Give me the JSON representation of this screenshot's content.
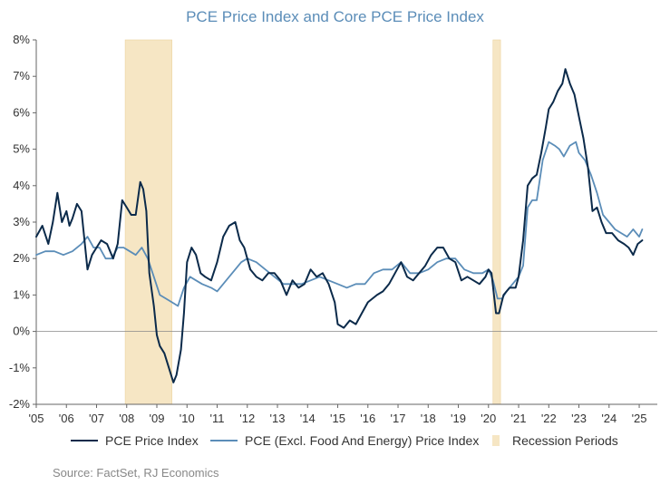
{
  "title": "PCE Price Index and Core PCE Price Index",
  "source": "Source: FactSet, RJ Economics",
  "colors": {
    "pce": "#0b2a4a",
    "core": "#5b8db8",
    "recession": "#f6e6c4",
    "title": "#5b8db8",
    "zero_line": "#888888"
  },
  "chart_data": {
    "type": "line",
    "x_unit": "year",
    "xlim": [
      2005.0,
      2025.6
    ],
    "ylim": [
      -2,
      8
    ],
    "y_ticks": [
      -2,
      -1,
      0,
      1,
      2,
      3,
      4,
      5,
      6,
      7,
      8
    ],
    "y_tick_labels": [
      "-2%",
      "-1%",
      "0%",
      "1%",
      "2%",
      "3%",
      "4%",
      "5%",
      "6%",
      "7%",
      "8%"
    ],
    "x_ticks": [
      2005,
      2006,
      2007,
      2008,
      2009,
      2010,
      2011,
      2012,
      2013,
      2014,
      2015,
      2016,
      2017,
      2018,
      2019,
      2020,
      2021,
      2022,
      2023,
      2024,
      2025
    ],
    "x_tick_labels": [
      "'05",
      "'06",
      "'07",
      "'08",
      "'09",
      "'10",
      "'11",
      "'12",
      "'13",
      "'14",
      "'15",
      "'16",
      "'17",
      "'18",
      "'19",
      "'20",
      "'21",
      "'22",
      "'23",
      "'24",
      "'25"
    ],
    "recessions": [
      {
        "start": 2007.95,
        "end": 2009.5
      },
      {
        "start": 2020.15,
        "end": 2020.4
      }
    ],
    "legend": [
      "PCE Price Index",
      "PCE (Excl. Food And Energy) Price Index",
      "Recession Periods"
    ],
    "series": [
      {
        "name": "PCE Price Index",
        "x": [
          2005.0,
          2005.2,
          2005.4,
          2005.55,
          2005.7,
          2005.85,
          2006.0,
          2006.1,
          2006.2,
          2006.35,
          2006.5,
          2006.7,
          2006.85,
          2007.0,
          2007.15,
          2007.35,
          2007.55,
          2007.7,
          2007.85,
          2008.0,
          2008.15,
          2008.3,
          2008.45,
          2008.55,
          2008.65,
          2008.75,
          2008.9,
          2009.0,
          2009.1,
          2009.25,
          2009.4,
          2009.55,
          2009.65,
          2009.8,
          2009.9,
          2010.0,
          2010.15,
          2010.3,
          2010.45,
          2010.6,
          2010.8,
          2011.0,
          2011.2,
          2011.4,
          2011.6,
          2011.75,
          2011.9,
          2012.1,
          2012.3,
          2012.5,
          2012.7,
          2012.9,
          2013.1,
          2013.3,
          2013.5,
          2013.7,
          2013.9,
          2014.1,
          2014.3,
          2014.5,
          2014.7,
          2014.9,
          2015.0,
          2015.2,
          2015.4,
          2015.6,
          2015.8,
          2016.0,
          2016.15,
          2016.3,
          2016.5,
          2016.7,
          2016.9,
          2017.1,
          2017.3,
          2017.5,
          2017.7,
          2017.9,
          2018.1,
          2018.3,
          2018.5,
          2018.7,
          2018.9,
          2019.1,
          2019.3,
          2019.5,
          2019.7,
          2019.9,
          2020.0,
          2020.1,
          2020.25,
          2020.35,
          2020.5,
          2020.7,
          2020.9,
          2021.0,
          2021.15,
          2021.3,
          2021.45,
          2021.6,
          2021.75,
          2021.9,
          2022.0,
          2022.15,
          2022.3,
          2022.45,
          2022.55,
          2022.7,
          2022.85,
          2023.0,
          2023.15,
          2023.3,
          2023.45,
          2023.6,
          2023.75,
          2023.9,
          2024.1,
          2024.3,
          2024.5,
          2024.65,
          2024.8,
          2024.95,
          2025.1
        ],
        "values": [
          2.6,
          2.9,
          2.4,
          3.0,
          3.8,
          3.0,
          3.3,
          2.9,
          3.1,
          3.5,
          3.3,
          1.7,
          2.1,
          2.3,
          2.5,
          2.4,
          2.0,
          2.4,
          3.6,
          3.4,
          3.2,
          3.2,
          4.1,
          3.9,
          3.3,
          1.6,
          0.7,
          -0.1,
          -0.4,
          -0.6,
          -1.0,
          -1.4,
          -1.2,
          -0.5,
          0.5,
          1.9,
          2.3,
          2.1,
          1.6,
          1.5,
          1.4,
          1.9,
          2.6,
          2.9,
          3.0,
          2.5,
          2.3,
          1.7,
          1.5,
          1.4,
          1.6,
          1.6,
          1.4,
          1.0,
          1.4,
          1.2,
          1.3,
          1.7,
          1.5,
          1.6,
          1.3,
          0.8,
          0.2,
          0.1,
          0.3,
          0.2,
          0.5,
          0.8,
          0.9,
          1.0,
          1.1,
          1.3,
          1.6,
          1.9,
          1.5,
          1.4,
          1.6,
          1.8,
          2.1,
          2.3,
          2.3,
          2.0,
          1.9,
          1.4,
          1.5,
          1.4,
          1.3,
          1.5,
          1.7,
          1.6,
          0.5,
          0.5,
          1.0,
          1.2,
          1.2,
          1.5,
          2.5,
          4.0,
          4.2,
          4.3,
          4.9,
          5.6,
          6.1,
          6.3,
          6.6,
          6.8,
          7.2,
          6.8,
          6.5,
          5.9,
          5.3,
          4.5,
          3.3,
          3.4,
          3.0,
          2.7,
          2.7,
          2.5,
          2.4,
          2.3,
          2.1,
          2.4,
          2.5
        ]
      },
      {
        "name": "PCE (Excl. Food And Energy) Price Index",
        "x": [
          2005.0,
          2005.3,
          2005.6,
          2005.9,
          2006.2,
          2006.5,
          2006.7,
          2006.9,
          2007.1,
          2007.3,
          2007.5,
          2007.7,
          2007.9,
          2008.1,
          2008.3,
          2008.5,
          2008.7,
          2008.9,
          2009.1,
          2009.3,
          2009.5,
          2009.7,
          2009.9,
          2010.1,
          2010.3,
          2010.5,
          2010.8,
          2011.0,
          2011.2,
          2011.5,
          2011.8,
          2012.0,
          2012.3,
          2012.6,
          2012.9,
          2013.2,
          2013.5,
          2013.8,
          2014.1,
          2014.4,
          2014.7,
          2015.0,
          2015.3,
          2015.6,
          2015.9,
          2016.2,
          2016.5,
          2016.8,
          2017.1,
          2017.4,
          2017.7,
          2018.0,
          2018.3,
          2018.6,
          2018.9,
          2019.2,
          2019.5,
          2019.8,
          2020.0,
          2020.15,
          2020.3,
          2020.45,
          2020.6,
          2020.8,
          2021.0,
          2021.15,
          2021.3,
          2021.45,
          2021.6,
          2021.8,
          2022.0,
          2022.2,
          2022.35,
          2022.5,
          2022.7,
          2022.9,
          2023.0,
          2023.2,
          2023.4,
          2023.6,
          2023.8,
          2024.0,
          2024.2,
          2024.4,
          2024.6,
          2024.8,
          2025.0,
          2025.1
        ],
        "values": [
          2.1,
          2.2,
          2.2,
          2.1,
          2.2,
          2.4,
          2.6,
          2.3,
          2.3,
          2.0,
          2.0,
          2.3,
          2.3,
          2.2,
          2.1,
          2.3,
          2.0,
          1.5,
          1.0,
          0.9,
          0.8,
          0.7,
          1.2,
          1.5,
          1.4,
          1.3,
          1.2,
          1.1,
          1.3,
          1.6,
          1.9,
          2.0,
          1.9,
          1.7,
          1.5,
          1.3,
          1.3,
          1.3,
          1.4,
          1.5,
          1.4,
          1.3,
          1.2,
          1.3,
          1.3,
          1.6,
          1.7,
          1.7,
          1.9,
          1.6,
          1.6,
          1.7,
          1.9,
          2.0,
          2.0,
          1.7,
          1.6,
          1.6,
          1.7,
          1.4,
          0.9,
          0.9,
          1.1,
          1.3,
          1.5,
          1.8,
          3.4,
          3.6,
          3.6,
          4.7,
          5.2,
          5.1,
          5.0,
          4.8,
          5.1,
          5.2,
          4.9,
          4.7,
          4.3,
          3.8,
          3.2,
          3.0,
          2.8,
          2.7,
          2.6,
          2.8,
          2.6,
          2.8
        ]
      }
    ]
  }
}
